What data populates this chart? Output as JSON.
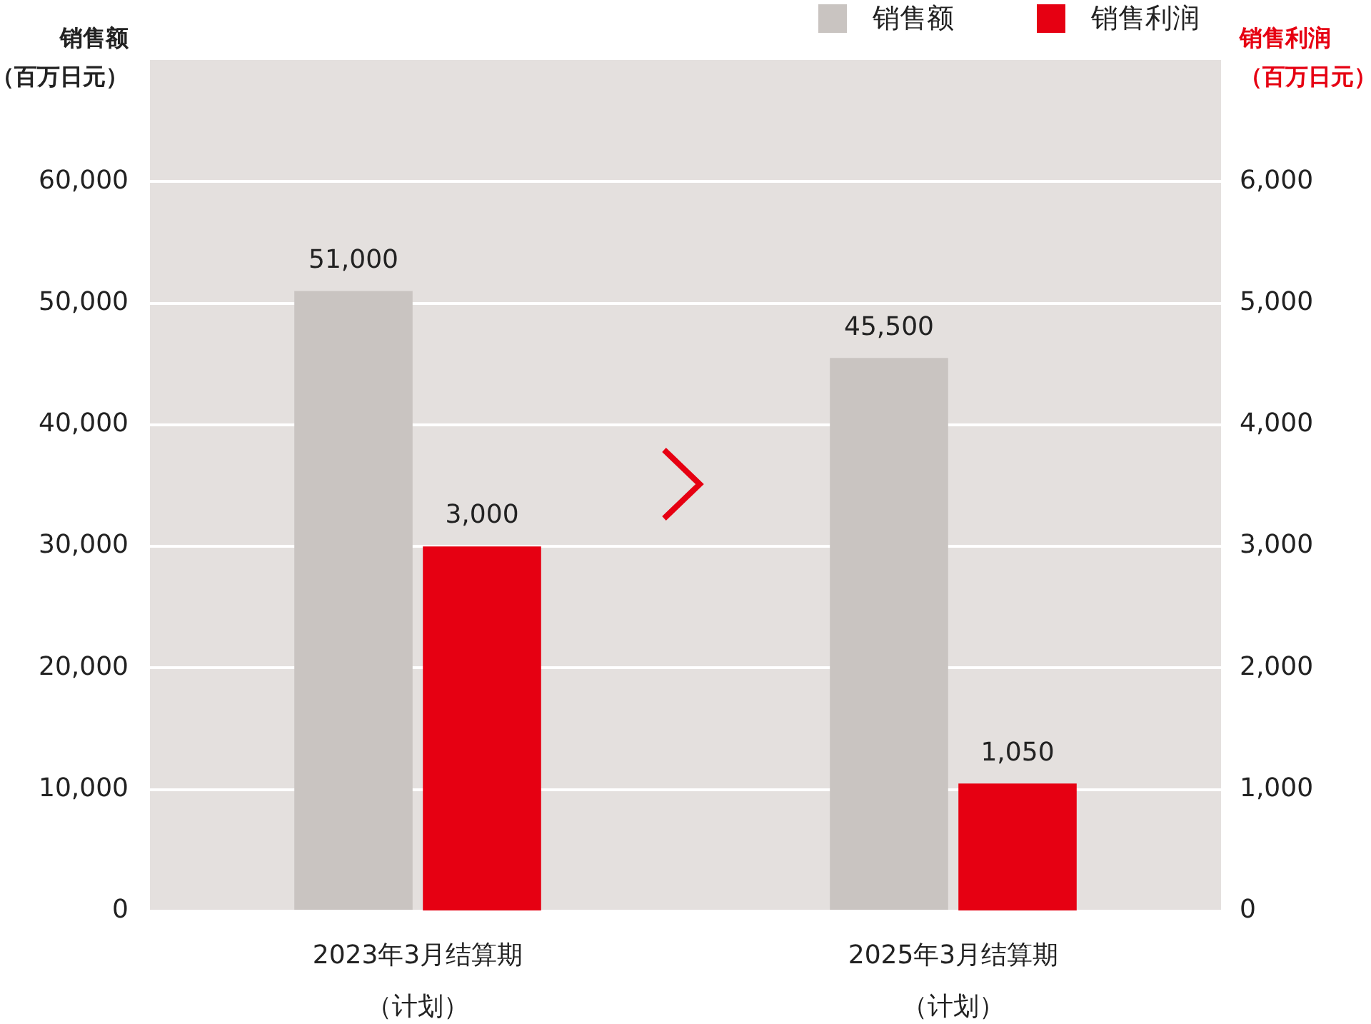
{
  "chart_data": {
    "type": "bar",
    "categories": [
      "2023年3月结算期（计划）",
      "2025年3月结算期（计划）"
    ],
    "series": [
      {
        "name": "销售额",
        "color": "#c9c4c1",
        "values": [
          51000,
          45500
        ],
        "value_labels": [
          "51,000",
          "45,500"
        ]
      },
      {
        "name": "销售利润",
        "color": "#e60012",
        "values": [
          3000,
          1050
        ],
        "axis": "y2",
        "value_labels": [
          "3,000",
          "1,050"
        ]
      }
    ],
    "ylabel": "销售额（百万日元）",
    "y2label": "销售利润（百万日元）",
    "ylim": [
      0,
      70000
    ],
    "yticks": [
      0,
      {
        "value": 10000,
        "label": "10,000"
      },
      {
        "value": 20000,
        "label": "20,000"
      },
      {
        "value": 30000,
        "label": "30,000"
      },
      {
        "value": 40000,
        "label": "40,000"
      },
      {
        "value": 50000,
        "label": "50,000"
      },
      {
        "value": 60000,
        "label": "60,000"
      }
    ],
    "y2lim": [
      0,
      7000
    ],
    "y2ticks": [
      0,
      {
        "value": 1000,
        "label": "1,000"
      },
      {
        "value": 2000,
        "label": "2,000"
      },
      {
        "value": 3000,
        "label": "3,000"
      },
      {
        "value": 4000,
        "label": "4,000"
      },
      {
        "value": 5000,
        "label": "5,000"
      },
      {
        "value": 6000,
        "label": "6,000"
      }
    ],
    "grid": "y",
    "legend": "top right"
  }
}
